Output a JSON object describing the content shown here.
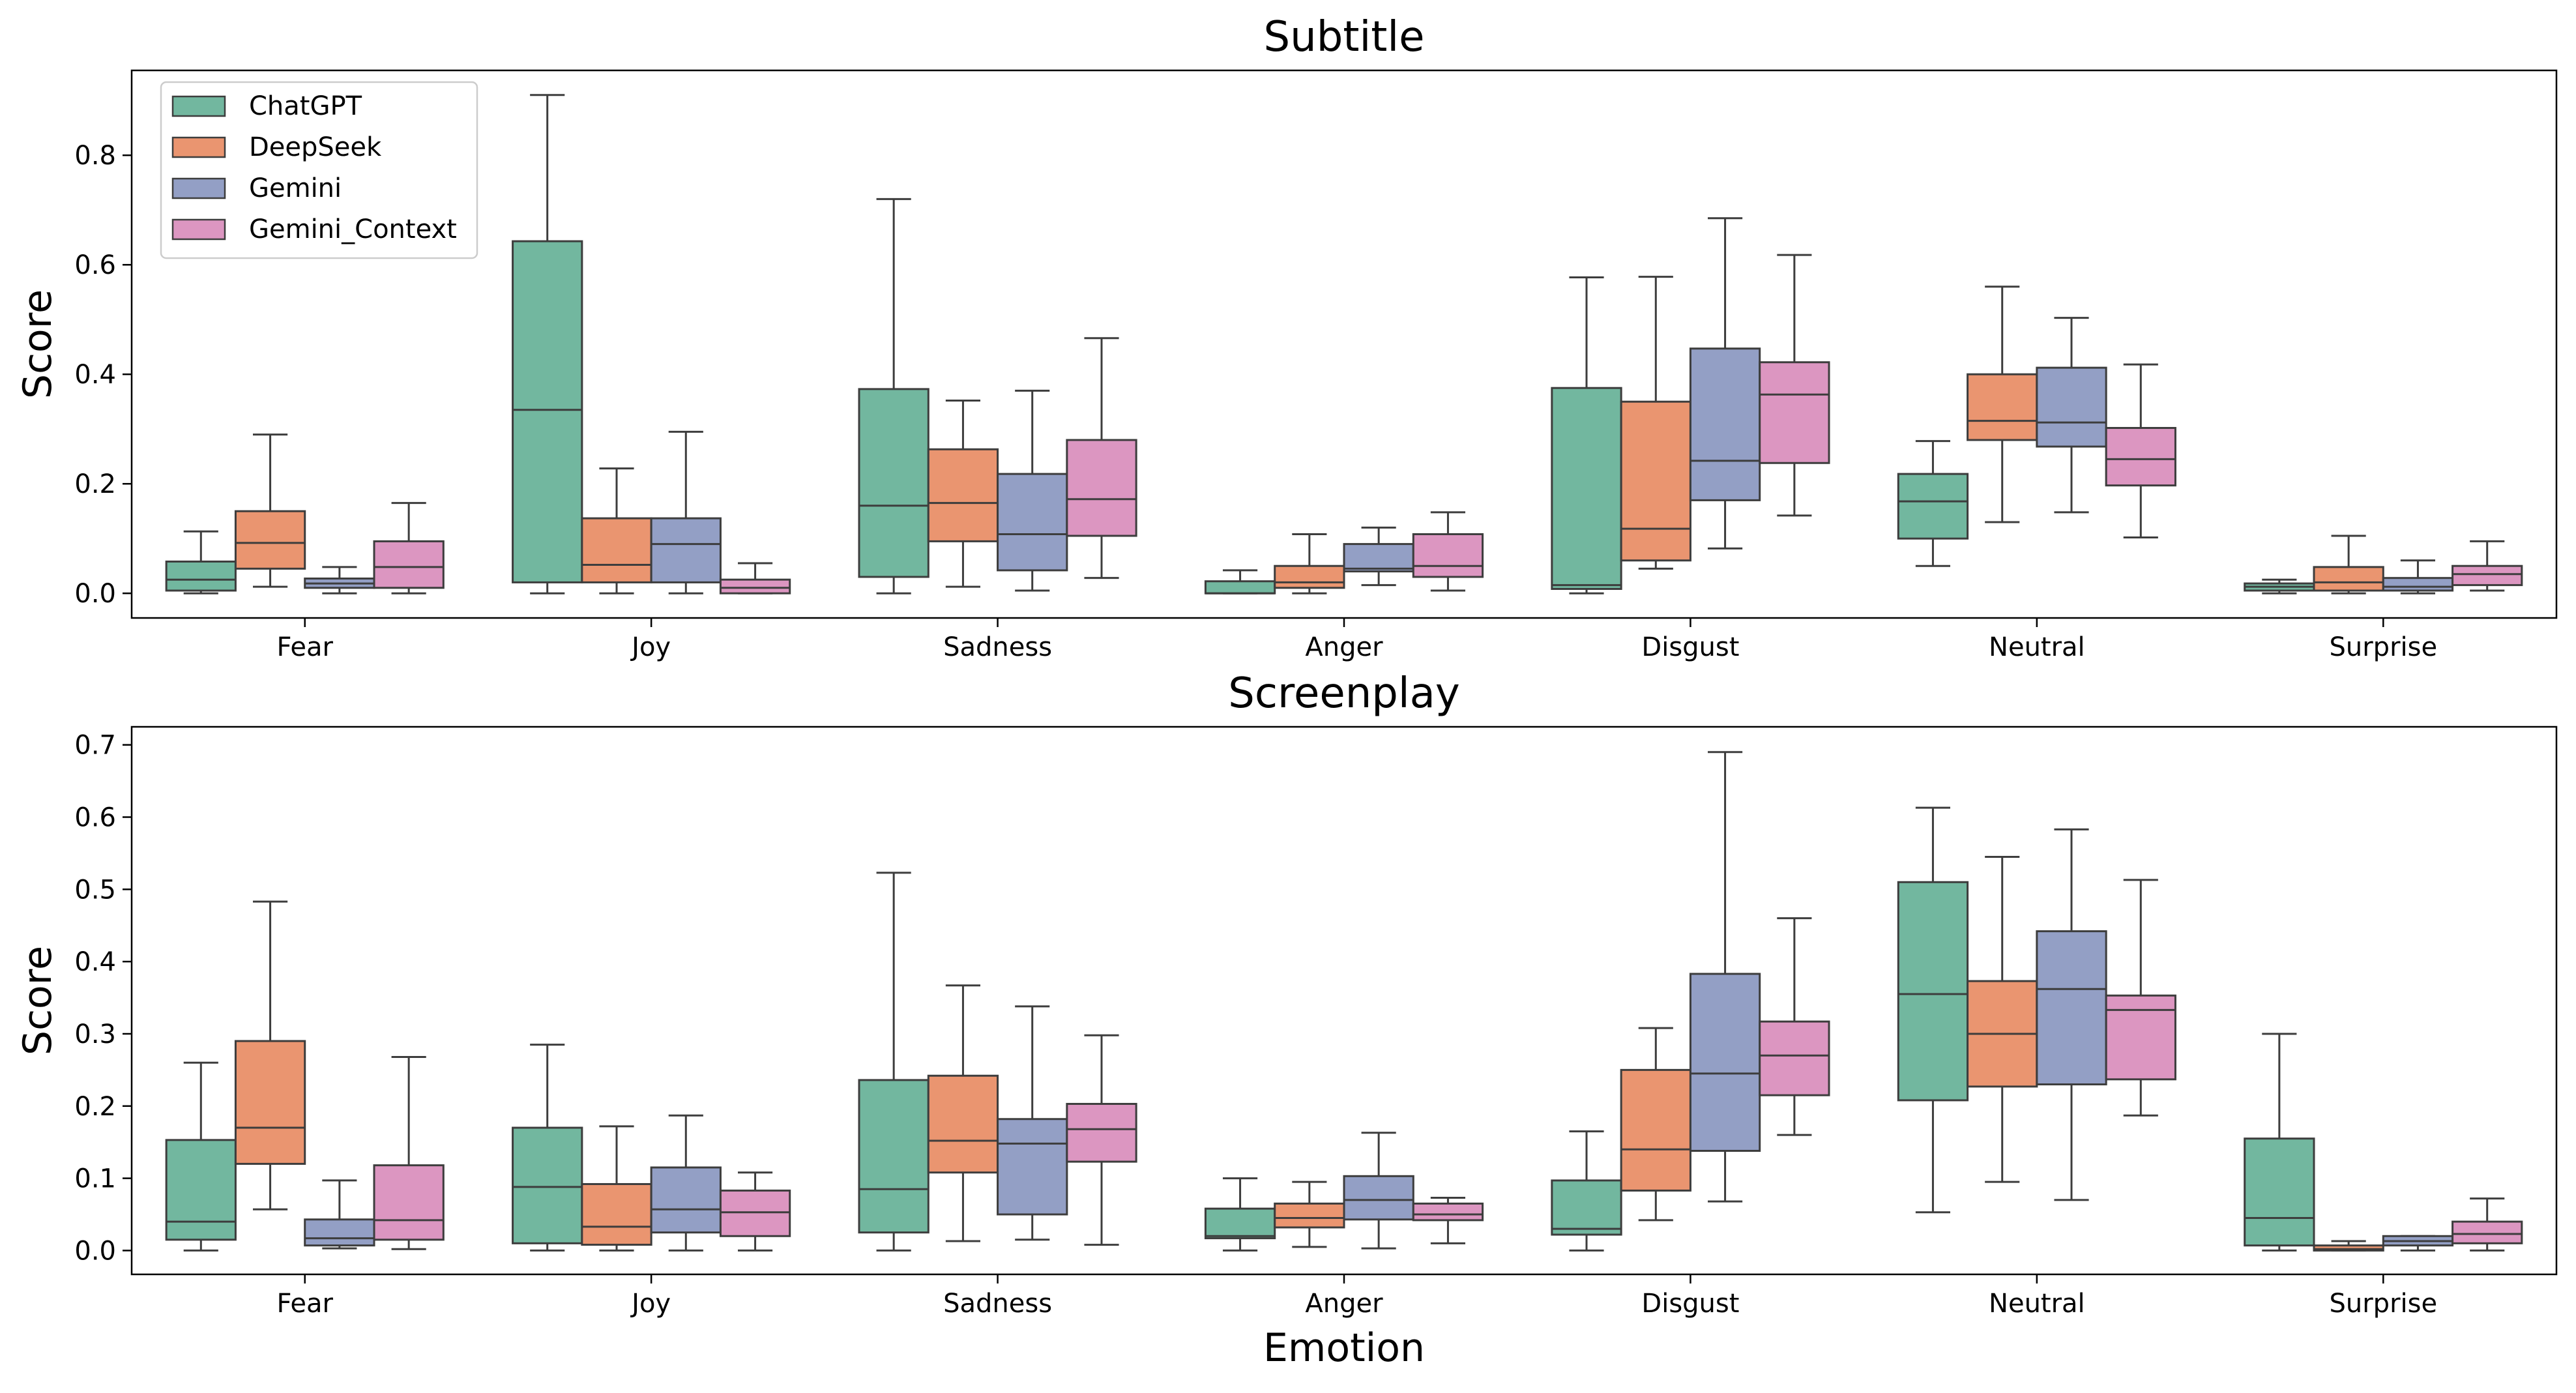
{
  "colors": {
    "ChatGPT": "#72b79f",
    "DeepSeek": "#ea9570",
    "Gemini": "#939fc5",
    "Gemini_Context": "#dc96c1",
    "line": "#3d3d3d",
    "frame": "#000000"
  },
  "legend": {
    "placement": "top-left",
    "entries": [
      "ChatGPT",
      "DeepSeek",
      "Gemini",
      "Gemini_Context"
    ]
  },
  "xlabel": "Emotion",
  "chart_data": [
    {
      "type": "box",
      "title": "Subtitle",
      "xlabel": "",
      "ylabel": "Score",
      "ylim": [
        -0.045,
        0.955
      ],
      "yticks": [
        "0.0",
        "0.2",
        "0.4",
        "0.6",
        "0.8"
      ],
      "grid": false,
      "categories": [
        "Fear",
        "Joy",
        "Sadness",
        "Anger",
        "Disgust",
        "Neutral",
        "Surprise"
      ],
      "series": [
        {
          "name": "ChatGPT",
          "boxes": [
            {
              "min": 0.0,
              "q1": 0.005,
              "median": 0.025,
              "q3": 0.058,
              "max": 0.113
            },
            {
              "min": 0.0,
              "q1": 0.02,
              "median": 0.335,
              "q3": 0.643,
              "max": 0.91
            },
            {
              "min": 0.0,
              "q1": 0.03,
              "median": 0.16,
              "q3": 0.373,
              "max": 0.72
            },
            {
              "min": 0.0,
              "q1": 0.0,
              "median": 0.0,
              "q3": 0.022,
              "max": 0.042
            },
            {
              "min": 0.0,
              "q1": 0.008,
              "median": 0.015,
              "q3": 0.375,
              "max": 0.577
            },
            {
              "min": 0.05,
              "q1": 0.1,
              "median": 0.168,
              "q3": 0.218,
              "max": 0.278
            },
            {
              "min": 0.0,
              "q1": 0.005,
              "median": 0.012,
              "q3": 0.018,
              "max": 0.025
            }
          ]
        },
        {
          "name": "DeepSeek",
          "boxes": [
            {
              "min": 0.012,
              "q1": 0.045,
              "median": 0.092,
              "q3": 0.15,
              "max": 0.29
            },
            {
              "min": 0.0,
              "q1": 0.02,
              "median": 0.052,
              "q3": 0.137,
              "max": 0.228
            },
            {
              "min": 0.012,
              "q1": 0.095,
              "median": 0.165,
              "q3": 0.263,
              "max": 0.352
            },
            {
              "min": 0.0,
              "q1": 0.01,
              "median": 0.02,
              "q3": 0.05,
              "max": 0.108
            },
            {
              "min": 0.045,
              "q1": 0.06,
              "median": 0.118,
              "q3": 0.35,
              "max": 0.578
            },
            {
              "min": 0.13,
              "q1": 0.28,
              "median": 0.315,
              "q3": 0.4,
              "max": 0.56
            },
            {
              "min": 0.0,
              "q1": 0.005,
              "median": 0.02,
              "q3": 0.048,
              "max": 0.105
            }
          ]
        },
        {
          "name": "Gemini",
          "boxes": [
            {
              "min": 0.0,
              "q1": 0.01,
              "median": 0.018,
              "q3": 0.027,
              "max": 0.048
            },
            {
              "min": 0.0,
              "q1": 0.02,
              "median": 0.09,
              "q3": 0.137,
              "max": 0.295
            },
            {
              "min": 0.005,
              "q1": 0.042,
              "median": 0.108,
              "q3": 0.218,
              "max": 0.37
            },
            {
              "min": 0.015,
              "q1": 0.04,
              "median": 0.045,
              "q3": 0.09,
              "max": 0.12
            },
            {
              "min": 0.082,
              "q1": 0.17,
              "median": 0.242,
              "q3": 0.447,
              "max": 0.685
            },
            {
              "min": 0.148,
              "q1": 0.268,
              "median": 0.312,
              "q3": 0.412,
              "max": 0.503
            },
            {
              "min": 0.0,
              "q1": 0.005,
              "median": 0.012,
              "q3": 0.028,
              "max": 0.06
            }
          ]
        },
        {
          "name": "Gemini_Context",
          "boxes": [
            {
              "min": 0.0,
              "q1": 0.01,
              "median": 0.048,
              "q3": 0.095,
              "max": 0.165
            },
            {
              "min": 0.0,
              "q1": 0.0,
              "median": 0.01,
              "q3": 0.025,
              "max": 0.055
            },
            {
              "min": 0.028,
              "q1": 0.105,
              "median": 0.172,
              "q3": 0.28,
              "max": 0.466
            },
            {
              "min": 0.005,
              "q1": 0.03,
              "median": 0.05,
              "q3": 0.108,
              "max": 0.148
            },
            {
              "min": 0.142,
              "q1": 0.238,
              "median": 0.363,
              "q3": 0.422,
              "max": 0.618
            },
            {
              "min": 0.102,
              "q1": 0.197,
              "median": 0.245,
              "q3": 0.302,
              "max": 0.418
            },
            {
              "min": 0.005,
              "q1": 0.015,
              "median": 0.035,
              "q3": 0.05,
              "max": 0.095
            }
          ]
        }
      ]
    },
    {
      "type": "box",
      "title": "Screenplay",
      "xlabel": "Emotion",
      "ylabel": "Score",
      "ylim": [
        -0.033,
        0.725
      ],
      "yticks": [
        "0.0",
        "0.1",
        "0.2",
        "0.3",
        "0.4",
        "0.5",
        "0.6",
        "0.7"
      ],
      "grid": false,
      "categories": [
        "Fear",
        "Joy",
        "Sadness",
        "Anger",
        "Disgust",
        "Neutral",
        "Surprise"
      ],
      "series": [
        {
          "name": "ChatGPT",
          "boxes": [
            {
              "min": 0.0,
              "q1": 0.015,
              "median": 0.04,
              "q3": 0.153,
              "max": 0.26
            },
            {
              "min": 0.0,
              "q1": 0.01,
              "median": 0.088,
              "q3": 0.17,
              "max": 0.285
            },
            {
              "min": 0.0,
              "q1": 0.025,
              "median": 0.085,
              "q3": 0.236,
              "max": 0.523
            },
            {
              "min": 0.0,
              "q1": 0.017,
              "median": 0.02,
              "q3": 0.058,
              "max": 0.1
            },
            {
              "min": 0.0,
              "q1": 0.022,
              "median": 0.03,
              "q3": 0.097,
              "max": 0.165
            },
            {
              "min": 0.053,
              "q1": 0.208,
              "median": 0.355,
              "q3": 0.51,
              "max": 0.613
            },
            {
              "min": 0.0,
              "q1": 0.007,
              "median": 0.045,
              "q3": 0.155,
              "max": 0.3
            }
          ]
        },
        {
          "name": "DeepSeek",
          "boxes": [
            {
              "min": 0.057,
              "q1": 0.12,
              "median": 0.17,
              "q3": 0.29,
              "max": 0.483
            },
            {
              "min": 0.0,
              "q1": 0.008,
              "median": 0.033,
              "q3": 0.092,
              "max": 0.172
            },
            {
              "min": 0.013,
              "q1": 0.108,
              "median": 0.152,
              "q3": 0.242,
              "max": 0.367
            },
            {
              "min": 0.005,
              "q1": 0.032,
              "median": 0.045,
              "q3": 0.065,
              "max": 0.095
            },
            {
              "min": 0.042,
              "q1": 0.083,
              "median": 0.14,
              "q3": 0.25,
              "max": 0.308
            },
            {
              "min": 0.095,
              "q1": 0.227,
              "median": 0.3,
              "q3": 0.373,
              "max": 0.545
            },
            {
              "min": 0.0,
              "q1": 0.0,
              "median": 0.002,
              "q3": 0.007,
              "max": 0.013
            }
          ]
        },
        {
          "name": "Gemini",
          "boxes": [
            {
              "min": 0.003,
              "q1": 0.007,
              "median": 0.017,
              "q3": 0.043,
              "max": 0.097
            },
            {
              "min": 0.0,
              "q1": 0.025,
              "median": 0.057,
              "q3": 0.115,
              "max": 0.187
            },
            {
              "min": 0.015,
              "q1": 0.05,
              "median": 0.148,
              "q3": 0.182,
              "max": 0.338
            },
            {
              "min": 0.003,
              "q1": 0.043,
              "median": 0.07,
              "q3": 0.103,
              "max": 0.163
            },
            {
              "min": 0.068,
              "q1": 0.138,
              "median": 0.245,
              "q3": 0.383,
              "max": 0.69
            },
            {
              "min": 0.07,
              "q1": 0.23,
              "median": 0.362,
              "q3": 0.442,
              "max": 0.583
            },
            {
              "min": 0.0,
              "q1": 0.007,
              "median": 0.013,
              "q3": 0.02,
              "max": 0.02
            }
          ]
        },
        {
          "name": "Gemini_Context",
          "boxes": [
            {
              "min": 0.002,
              "q1": 0.015,
              "median": 0.042,
              "q3": 0.118,
              "max": 0.268
            },
            {
              "min": 0.0,
              "q1": 0.02,
              "median": 0.053,
              "q3": 0.083,
              "max": 0.108
            },
            {
              "min": 0.008,
              "q1": 0.123,
              "median": 0.168,
              "q3": 0.203,
              "max": 0.298
            },
            {
              "min": 0.01,
              "q1": 0.042,
              "median": 0.05,
              "q3": 0.065,
              "max": 0.073
            },
            {
              "min": 0.16,
              "q1": 0.215,
              "median": 0.27,
              "q3": 0.317,
              "max": 0.46
            },
            {
              "min": 0.187,
              "q1": 0.237,
              "median": 0.333,
              "q3": 0.353,
              "max": 0.513
            },
            {
              "min": 0.0,
              "q1": 0.01,
              "median": 0.023,
              "q3": 0.04,
              "max": 0.072
            }
          ]
        }
      ]
    }
  ]
}
